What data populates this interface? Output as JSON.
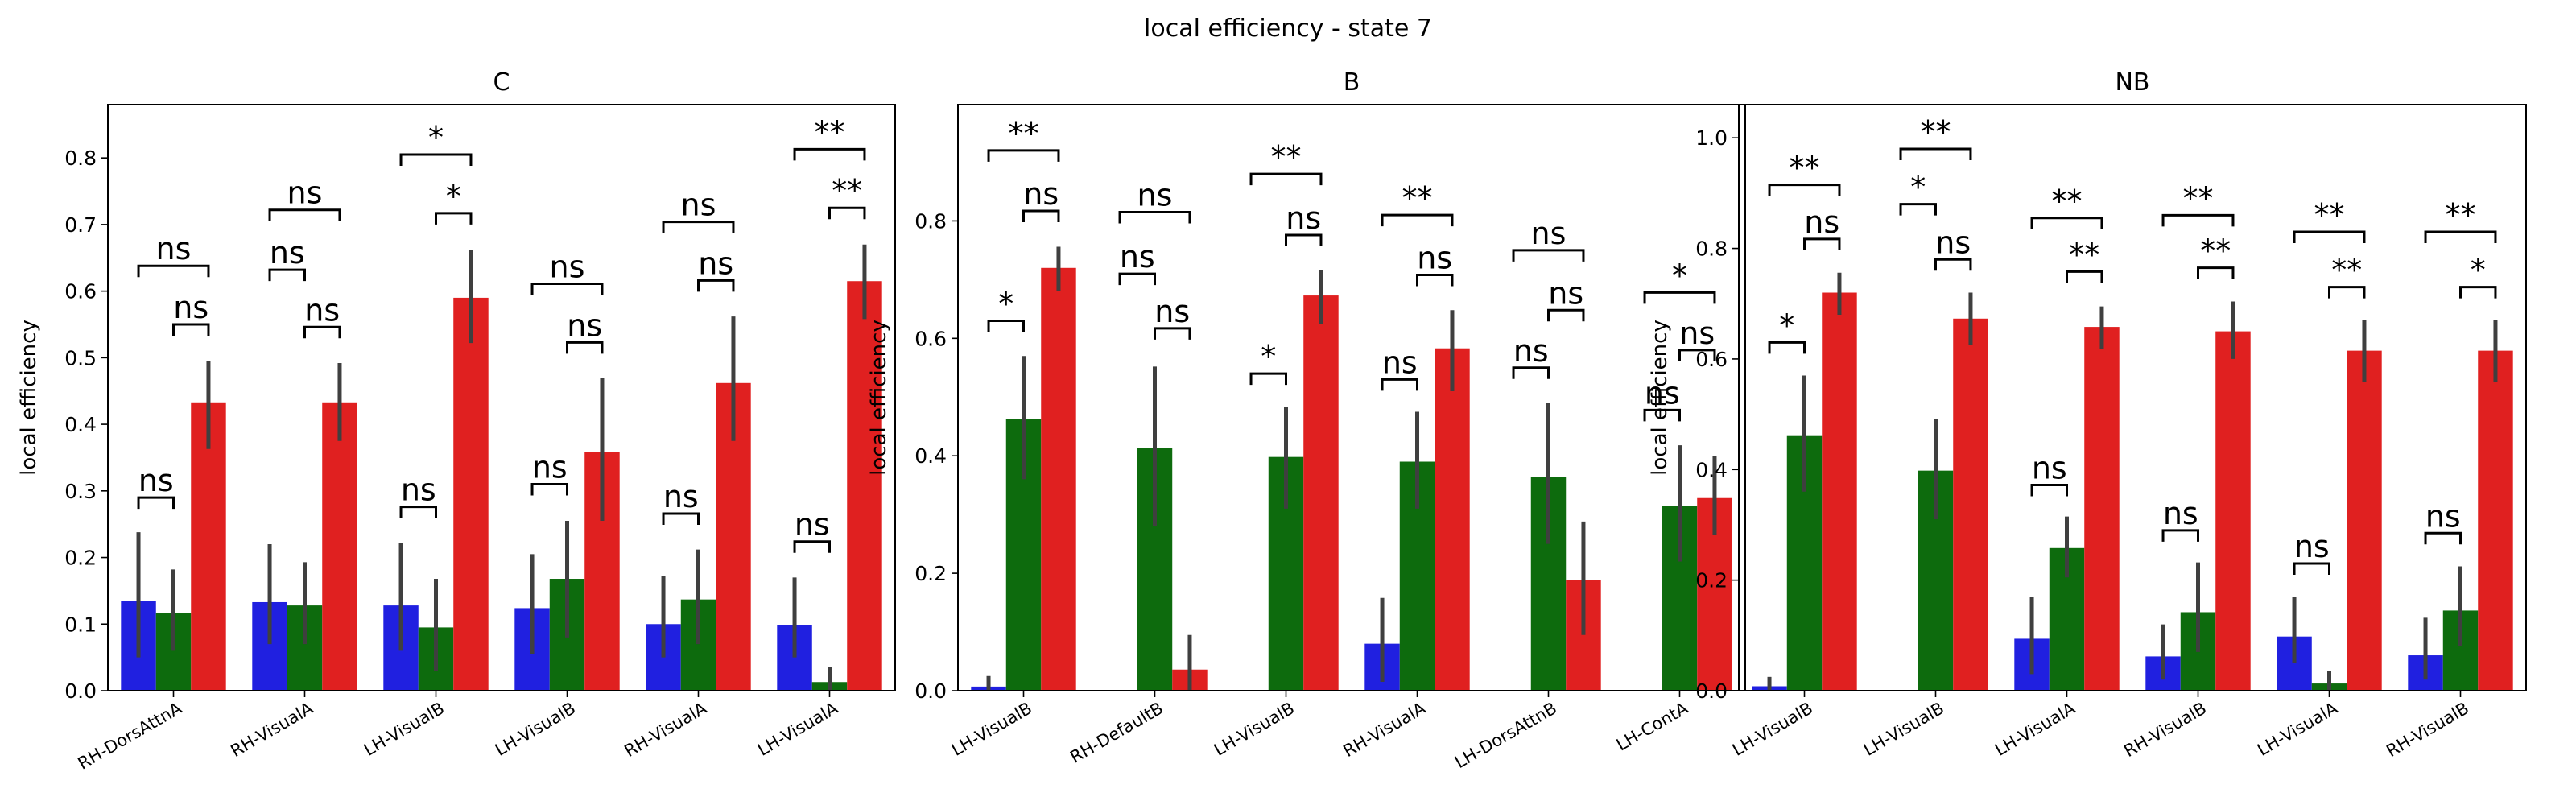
{
  "suptitle": "local efficiency - state 7",
  "colors": {
    "blue": "#2020e0",
    "green": "#0d6b0d",
    "red": "#e02020",
    "errorbar": "#3f3f3f"
  },
  "chart_data": [
    {
      "type": "bar",
      "title": "C",
      "ylabel": "local efficiency",
      "ylim": [
        0,
        0.88
      ],
      "yticks": [
        0.0,
        0.1,
        0.2,
        0.3,
        0.4,
        0.5,
        0.6,
        0.7,
        0.8
      ],
      "categories": [
        "RH-DorsAttnA",
        "RH-VisualA",
        "LH-VisualB",
        "LH-VisualB",
        "RH-VisualA",
        "LH-VisualA"
      ],
      "series": [
        {
          "color": "#2020e0",
          "values": [
            0.135,
            0.133,
            0.128,
            0.124,
            0.1,
            0.098
          ],
          "ci": [
            [
              0.05,
              0.238
            ],
            [
              0.07,
              0.22
            ],
            [
              0.06,
              0.222
            ],
            [
              0.055,
              0.205
            ],
            [
              0.05,
              0.172
            ],
            [
              0.05,
              0.17
            ]
          ]
        },
        {
          "color": "#0d6b0d",
          "values": [
            0.117,
            0.128,
            0.095,
            0.168,
            0.137,
            0.013
          ],
          "ci": [
            [
              0.06,
              0.182
            ],
            [
              0.07,
              0.193
            ],
            [
              0.03,
              0.168
            ],
            [
              0.08,
              0.255
            ],
            [
              0.07,
              0.212
            ],
            [
              0.0,
              0.036
            ]
          ]
        },
        {
          "color": "#e02020",
          "values": [
            0.433,
            0.433,
            0.59,
            0.358,
            0.462,
            0.615
          ],
          "ci": [
            [
              0.363,
              0.495
            ],
            [
              0.375,
              0.492
            ],
            [
              0.522,
              0.662
            ],
            [
              0.255,
              0.47
            ],
            [
              0.375,
              0.562
            ],
            [
              0.558,
              0.67
            ]
          ]
        }
      ],
      "annotations": [
        {
          "cat": 0,
          "from": 0,
          "to": 1,
          "y": 0.29,
          "label": "ns"
        },
        {
          "cat": 0,
          "from": 1,
          "to": 2,
          "y": 0.55,
          "label": "ns"
        },
        {
          "cat": 0,
          "from": 0,
          "to": 2,
          "y": 0.638,
          "label": "ns"
        },
        {
          "cat": 1,
          "from": 0,
          "to": 1,
          "y": 0.632,
          "label": "ns"
        },
        {
          "cat": 1,
          "from": 1,
          "to": 2,
          "y": 0.546,
          "label": "ns"
        },
        {
          "cat": 1,
          "from": 0,
          "to": 2,
          "y": 0.722,
          "label": "ns"
        },
        {
          "cat": 2,
          "from": 0,
          "to": 1,
          "y": 0.276,
          "label": "ns"
        },
        {
          "cat": 2,
          "from": 1,
          "to": 2,
          "y": 0.717,
          "label": "*"
        },
        {
          "cat": 2,
          "from": 0,
          "to": 2,
          "y": 0.805,
          "label": "*"
        },
        {
          "cat": 3,
          "from": 0,
          "to": 1,
          "y": 0.31,
          "label": "ns"
        },
        {
          "cat": 3,
          "from": 1,
          "to": 2,
          "y": 0.523,
          "label": "ns"
        },
        {
          "cat": 3,
          "from": 0,
          "to": 2,
          "y": 0.611,
          "label": "ns"
        },
        {
          "cat": 4,
          "from": 0,
          "to": 1,
          "y": 0.266,
          "label": "ns"
        },
        {
          "cat": 4,
          "from": 1,
          "to": 2,
          "y": 0.616,
          "label": "ns"
        },
        {
          "cat": 4,
          "from": 0,
          "to": 2,
          "y": 0.704,
          "label": "ns"
        },
        {
          "cat": 5,
          "from": 0,
          "to": 1,
          "y": 0.224,
          "label": "ns"
        },
        {
          "cat": 5,
          "from": 1,
          "to": 2,
          "y": 0.725,
          "label": "**"
        },
        {
          "cat": 5,
          "from": 0,
          "to": 2,
          "y": 0.813,
          "label": "**"
        }
      ]
    },
    {
      "type": "bar",
      "title": "B",
      "ylabel": "local efficiency",
      "ylim": [
        0,
        0.998
      ],
      "yticks": [
        0.0,
        0.2,
        0.4,
        0.6,
        0.8
      ],
      "categories": [
        "LH-VisualB",
        "RH-DefaultB",
        "LH-VisualB",
        "RH-VisualA",
        "LH-DorsAttnB",
        "LH-ContA"
      ],
      "series": [
        {
          "color": "#2020e0",
          "values": [
            0.007,
            0.0,
            0.0,
            0.08,
            0.0,
            0.0
          ],
          "ci": [
            [
              0.0,
              0.025
            ],
            [
              0.0,
              0.0
            ],
            [
              0.0,
              0.0
            ],
            [
              0.015,
              0.158
            ],
            [
              0.0,
              0.0
            ],
            [
              0.0,
              0.0
            ]
          ]
        },
        {
          "color": "#0d6b0d",
          "values": [
            0.462,
            0.413,
            0.398,
            0.39,
            0.364,
            0.314
          ],
          "ci": [
            [
              0.36,
              0.57
            ],
            [
              0.28,
              0.552
            ],
            [
              0.31,
              0.484
            ],
            [
              0.31,
              0.475
            ],
            [
              0.25,
              0.49
            ],
            [
              0.22,
              0.418
            ]
          ]
        },
        {
          "color": "#e02020",
          "values": [
            0.72,
            0.036,
            0.673,
            0.583,
            0.188,
            0.328
          ],
          "ci": [
            [
              0.68,
              0.756
            ],
            [
              0.0,
              0.095
            ],
            [
              0.625,
              0.716
            ],
            [
              0.51,
              0.648
            ],
            [
              0.095,
              0.288
            ],
            [
              0.265,
              0.4
            ]
          ]
        }
      ],
      "annotations": [
        {
          "cat": 0,
          "from": 0,
          "to": 1,
          "y": 0.63,
          "label": "*"
        },
        {
          "cat": 0,
          "from": 1,
          "to": 2,
          "y": 0.817,
          "label": "ns"
        },
        {
          "cat": 0,
          "from": 0,
          "to": 2,
          "y": 0.92,
          "label": "**"
        },
        {
          "cat": 1,
          "from": 0,
          "to": 1,
          "y": 0.71,
          "label": "ns"
        },
        {
          "cat": 1,
          "from": 1,
          "to": 2,
          "y": 0.617,
          "label": "ns"
        },
        {
          "cat": 1,
          "from": 0,
          "to": 2,
          "y": 0.815,
          "label": "ns"
        },
        {
          "cat": 2,
          "from": 0,
          "to": 1,
          "y": 0.54,
          "label": "*"
        },
        {
          "cat": 2,
          "from": 1,
          "to": 2,
          "y": 0.776,
          "label": "ns"
        },
        {
          "cat": 2,
          "from": 0,
          "to": 2,
          "y": 0.88,
          "label": "**"
        },
        {
          "cat": 3,
          "from": 0,
          "to": 1,
          "y": 0.53,
          "label": "ns"
        },
        {
          "cat": 3,
          "from": 1,
          "to": 2,
          "y": 0.708,
          "label": "ns"
        },
        {
          "cat": 3,
          "from": 0,
          "to": 2,
          "y": 0.81,
          "label": "**"
        },
        {
          "cat": 4,
          "from": 0,
          "to": 1,
          "y": 0.55,
          "label": "ns"
        },
        {
          "cat": 4,
          "from": 1,
          "to": 2,
          "y": 0.648,
          "label": "ns"
        },
        {
          "cat": 4,
          "from": 0,
          "to": 2,
          "y": 0.75,
          "label": "ns"
        },
        {
          "cat": 5,
          "from": 0,
          "to": 1,
          "y": 0.478,
          "label": "ns"
        },
        {
          "cat": 5,
          "from": 1,
          "to": 2,
          "y": 0.58,
          "label": "ns"
        },
        {
          "cat": 5,
          "from": 0,
          "to": 2,
          "y": 0.678,
          "label": "*"
        }
      ]
    },
    {
      "type": "bar",
      "title": "NB",
      "ylabel": "local efficiency",
      "ylim": [
        0,
        1.06
      ],
      "yticks": [
        0.0,
        0.2,
        0.4,
        0.6,
        0.8,
        1.0
      ],
      "categories": [
        "LH-VisualB",
        "LH-VisualB",
        "LH-VisualA",
        "RH-VisualB",
        "LH-VisualA",
        "RH-VisualB"
      ],
      "series": [
        {
          "color": "#2020e0",
          "values": [
            0.008,
            0.0,
            0.094,
            0.062,
            0.098,
            0.064
          ],
          "ci": [
            [
              0.0,
              0.025
            ],
            [
              0.0,
              0.0
            ],
            [
              0.03,
              0.17
            ],
            [
              0.02,
              0.12
            ],
            [
              0.05,
              0.17
            ],
            [
              0.02,
              0.132
            ]
          ]
        },
        {
          "color": "#0d6b0d",
          "values": [
            0.462,
            0.398,
            0.258,
            0.142,
            0.013,
            0.145
          ],
          "ci": [
            [
              0.36,
              0.57
            ],
            [
              0.31,
              0.492
            ],
            [
              0.205,
              0.315
            ],
            [
              0.07,
              0.232
            ],
            [
              0.0,
              0.036
            ],
            [
              0.08,
              0.225
            ]
          ]
        },
        {
          "color": "#e02020",
          "values": [
            0.72,
            0.673,
            0.658,
            0.65,
            0.615,
            0.615
          ],
          "ci": [
            [
              0.68,
              0.756
            ],
            [
              0.625,
              0.72
            ],
            [
              0.618,
              0.695
            ],
            [
              0.6,
              0.704
            ],
            [
              0.558,
              0.67
            ],
            [
              0.558,
              0.67
            ]
          ]
        }
      ],
      "annotations": [
        {
          "cat": 0,
          "from": 0,
          "to": 1,
          "y": 0.63,
          "label": "*"
        },
        {
          "cat": 0,
          "from": 1,
          "to": 2,
          "y": 0.817,
          "label": "ns"
        },
        {
          "cat": 0,
          "from": 0,
          "to": 2,
          "y": 0.915,
          "label": "**"
        },
        {
          "cat": 1,
          "from": 0,
          "to": 1,
          "y": 0.88,
          "label": "*"
        },
        {
          "cat": 1,
          "from": 1,
          "to": 2,
          "y": 0.78,
          "label": "ns"
        },
        {
          "cat": 1,
          "from": 0,
          "to": 2,
          "y": 0.98,
          "label": "**"
        },
        {
          "cat": 2,
          "from": 0,
          "to": 1,
          "y": 0.372,
          "label": "ns"
        },
        {
          "cat": 2,
          "from": 1,
          "to": 2,
          "y": 0.758,
          "label": "**"
        },
        {
          "cat": 2,
          "from": 0,
          "to": 2,
          "y": 0.855,
          "label": "**"
        },
        {
          "cat": 3,
          "from": 0,
          "to": 1,
          "y": 0.29,
          "label": "ns"
        },
        {
          "cat": 3,
          "from": 1,
          "to": 2,
          "y": 0.765,
          "label": "**"
        },
        {
          "cat": 3,
          "from": 0,
          "to": 2,
          "y": 0.86,
          "label": "**"
        },
        {
          "cat": 4,
          "from": 0,
          "to": 1,
          "y": 0.23,
          "label": "ns"
        },
        {
          "cat": 4,
          "from": 1,
          "to": 2,
          "y": 0.73,
          "label": "**"
        },
        {
          "cat": 4,
          "from": 0,
          "to": 2,
          "y": 0.83,
          "label": "**"
        },
        {
          "cat": 5,
          "from": 0,
          "to": 1,
          "y": 0.285,
          "label": "ns"
        },
        {
          "cat": 5,
          "from": 1,
          "to": 2,
          "y": 0.73,
          "label": "*"
        },
        {
          "cat": 5,
          "from": 0,
          "to": 2,
          "y": 0.83,
          "label": "**"
        }
      ]
    }
  ]
}
